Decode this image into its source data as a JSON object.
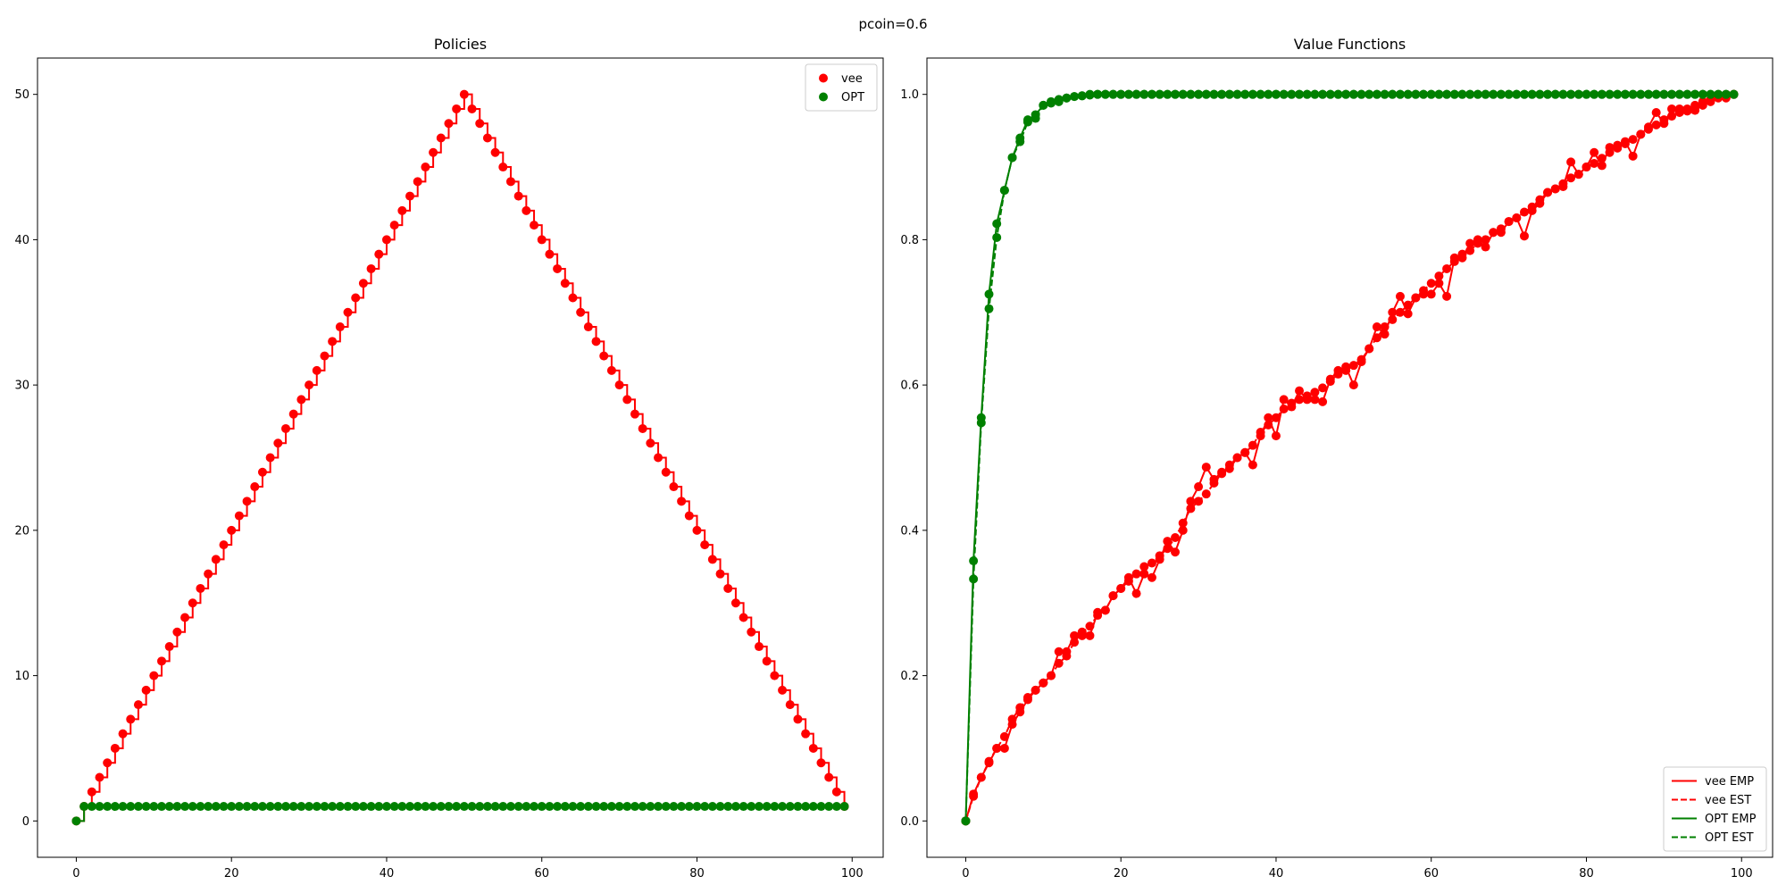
{
  "figure": {
    "suptitle": "pcoin=0.6"
  },
  "chart_data": [
    {
      "type": "scatter",
      "title": "Policies",
      "xlabel": "",
      "ylabel": "",
      "xlim": [
        -5,
        104
      ],
      "ylim": [
        -2.5,
        52.5
      ],
      "xticks": [
        0,
        20,
        40,
        60,
        80,
        100
      ],
      "yticks": [
        0,
        10,
        20,
        30,
        40,
        50
      ],
      "grid": false,
      "legend_position": "upper-right",
      "x": {
        "start": 0,
        "stop": 99,
        "step": 1
      },
      "series": [
        {
          "name": "vee",
          "color": "#ff0000",
          "marker": "circle",
          "line": "steps-post",
          "values": [
            0,
            1,
            2,
            3,
            4,
            5,
            6,
            7,
            8,
            9,
            10,
            11,
            12,
            13,
            14,
            15,
            16,
            17,
            18,
            19,
            20,
            21,
            22,
            23,
            24,
            25,
            26,
            27,
            28,
            29,
            30,
            31,
            32,
            33,
            34,
            35,
            36,
            37,
            38,
            39,
            40,
            41,
            42,
            43,
            44,
            45,
            46,
            47,
            48,
            49,
            50,
            49,
            48,
            47,
            46,
            45,
            44,
            43,
            42,
            41,
            40,
            39,
            38,
            37,
            36,
            35,
            34,
            33,
            32,
            31,
            30,
            29,
            28,
            27,
            26,
            25,
            24,
            23,
            22,
            21,
            20,
            19,
            18,
            17,
            16,
            15,
            14,
            13,
            12,
            11,
            10,
            9,
            8,
            7,
            6,
            5,
            4,
            3,
            2,
            1
          ]
        },
        {
          "name": "OPT",
          "color": "#008000",
          "marker": "circle",
          "line": "steps-post",
          "values": [
            0,
            1,
            1,
            1,
            1,
            1,
            1,
            1,
            1,
            1,
            1,
            1,
            1,
            1,
            1,
            1,
            1,
            1,
            1,
            1,
            1,
            1,
            1,
            1,
            1,
            1,
            1,
            1,
            1,
            1,
            1,
            1,
            1,
            1,
            1,
            1,
            1,
            1,
            1,
            1,
            1,
            1,
            1,
            1,
            1,
            1,
            1,
            1,
            1,
            1,
            1,
            1,
            1,
            1,
            1,
            1,
            1,
            1,
            1,
            1,
            1,
            1,
            1,
            1,
            1,
            1,
            1,
            1,
            1,
            1,
            1,
            1,
            1,
            1,
            1,
            1,
            1,
            1,
            1,
            1,
            1,
            1,
            1,
            1,
            1,
            1,
            1,
            1,
            1,
            1,
            1,
            1,
            1,
            1,
            1,
            1,
            1,
            1,
            1,
            1
          ]
        }
      ]
    },
    {
      "type": "line",
      "title": "Value Functions",
      "xlabel": "",
      "ylabel": "",
      "xlim": [
        -5,
        104
      ],
      "ylim": [
        -0.05,
        1.05
      ],
      "xticks": [
        0,
        20,
        40,
        60,
        80,
        100
      ],
      "yticks": [
        0.0,
        0.2,
        0.4,
        0.6,
        0.8,
        1.0
      ],
      "ytick_labels": [
        "0.0",
        "0.2",
        "0.4",
        "0.6",
        "0.8",
        "1.0"
      ],
      "grid": false,
      "legend_position": "lower-right",
      "x": {
        "start": 0,
        "stop": 99,
        "step": 1
      },
      "series": [
        {
          "name": "vee EMP",
          "color": "#ff0000",
          "linestyle": "solid",
          "marker": "circle",
          "values": [
            0.0,
            0.037,
            0.06,
            0.08,
            0.1,
            0.1,
            0.133,
            0.15,
            0.167,
            0.18,
            0.19,
            0.2,
            0.233,
            0.233,
            0.255,
            0.255,
            0.255,
            0.287,
            0.29,
            0.31,
            0.32,
            0.335,
            0.313,
            0.34,
            0.335,
            0.36,
            0.385,
            0.37,
            0.4,
            0.44,
            0.46,
            0.487,
            0.47,
            0.48,
            0.485,
            0.5,
            0.507,
            0.49,
            0.53,
            0.555,
            0.53,
            0.58,
            0.57,
            0.592,
            0.58,
            0.58,
            0.577,
            0.608,
            0.62,
            0.625,
            0.6,
            0.632,
            0.65,
            0.68,
            0.67,
            0.7,
            0.722,
            0.698,
            0.72,
            0.725,
            0.725,
            0.74,
            0.722,
            0.775,
            0.775,
            0.795,
            0.8,
            0.79,
            0.81,
            0.81,
            0.825,
            0.83,
            0.805,
            0.84,
            0.85,
            0.865,
            0.87,
            0.873,
            0.907,
            0.89,
            0.9,
            0.92,
            0.902,
            0.927,
            0.93,
            0.935,
            0.915,
            0.945,
            0.955,
            0.975,
            0.96,
            0.98,
            0.98,
            0.977,
            0.978,
            0.985,
            0.99,
            0.995,
            0.995,
            1.0
          ]
        },
        {
          "name": "vee EST",
          "color": "#ff0000",
          "linestyle": "dashed",
          "marker": "circle",
          "values": [
            0.0,
            0.034,
            0.06,
            0.082,
            0.1,
            0.116,
            0.14,
            0.156,
            0.17,
            0.18,
            0.19,
            0.2,
            0.217,
            0.227,
            0.246,
            0.26,
            0.268,
            0.283,
            0.29,
            0.31,
            0.32,
            0.33,
            0.34,
            0.35,
            0.355,
            0.365,
            0.375,
            0.39,
            0.41,
            0.43,
            0.44,
            0.45,
            0.465,
            0.478,
            0.49,
            0.5,
            0.507,
            0.517,
            0.535,
            0.545,
            0.555,
            0.567,
            0.575,
            0.58,
            0.585,
            0.59,
            0.596,
            0.605,
            0.615,
            0.62,
            0.627,
            0.635,
            0.65,
            0.665,
            0.68,
            0.69,
            0.7,
            0.71,
            0.72,
            0.73,
            0.74,
            0.75,
            0.76,
            0.77,
            0.78,
            0.785,
            0.795,
            0.8,
            0.81,
            0.815,
            0.825,
            0.83,
            0.838,
            0.845,
            0.855,
            0.865,
            0.87,
            0.877,
            0.885,
            0.89,
            0.9,
            0.905,
            0.912,
            0.92,
            0.926,
            0.932,
            0.938,
            0.945,
            0.952,
            0.958,
            0.965,
            0.97,
            0.975,
            0.98,
            0.985,
            0.99,
            0.993,
            0.996,
            0.998,
            1.0
          ]
        },
        {
          "name": "OPT EMP",
          "color": "#008000",
          "linestyle": "solid",
          "marker": "circle",
          "values": [
            0.0,
            0.358,
            0.555,
            0.725,
            0.822,
            0.868,
            0.913,
            0.94,
            0.965,
            0.972,
            0.985,
            0.988,
            0.99,
            0.995,
            0.997,
            0.998,
            1.0,
            1.0,
            1.0,
            1.0,
            1.0,
            1.0,
            1.0,
            1.0,
            1.0,
            1.0,
            1.0,
            1.0,
            1.0,
            1.0,
            1.0,
            1.0,
            1.0,
            1.0,
            1.0,
            1.0,
            1.0,
            1.0,
            1.0,
            1.0,
            1.0,
            1.0,
            1.0,
            1.0,
            1.0,
            1.0,
            1.0,
            1.0,
            1.0,
            1.0,
            1.0,
            1.0,
            1.0,
            1.0,
            1.0,
            1.0,
            1.0,
            1.0,
            1.0,
            1.0,
            1.0,
            1.0,
            1.0,
            1.0,
            1.0,
            1.0,
            1.0,
            1.0,
            1.0,
            1.0,
            1.0,
            1.0,
            1.0,
            1.0,
            1.0,
            1.0,
            1.0,
            1.0,
            1.0,
            1.0,
            1.0,
            1.0,
            1.0,
            1.0,
            1.0,
            1.0,
            1.0,
            1.0,
            1.0,
            1.0,
            1.0,
            1.0,
            1.0,
            1.0,
            1.0,
            1.0,
            1.0,
            1.0,
            1.0,
            1.0
          ]
        },
        {
          "name": "OPT EST",
          "color": "#008000",
          "linestyle": "dashed",
          "marker": "circle",
          "values": [
            0.0,
            0.333,
            0.548,
            0.705,
            0.803,
            0.868,
            0.913,
            0.935,
            0.962,
            0.967,
            0.985,
            0.99,
            0.993,
            0.995,
            0.997,
            0.998,
            0.999,
            1.0,
            1.0,
            1.0,
            1.0,
            1.0,
            1.0,
            1.0,
            1.0,
            1.0,
            1.0,
            1.0,
            1.0,
            1.0,
            1.0,
            1.0,
            1.0,
            1.0,
            1.0,
            1.0,
            1.0,
            1.0,
            1.0,
            1.0,
            1.0,
            1.0,
            1.0,
            1.0,
            1.0,
            1.0,
            1.0,
            1.0,
            1.0,
            1.0,
            1.0,
            1.0,
            1.0,
            1.0,
            1.0,
            1.0,
            1.0,
            1.0,
            1.0,
            1.0,
            1.0,
            1.0,
            1.0,
            1.0,
            1.0,
            1.0,
            1.0,
            1.0,
            1.0,
            1.0,
            1.0,
            1.0,
            1.0,
            1.0,
            1.0,
            1.0,
            1.0,
            1.0,
            1.0,
            1.0,
            1.0,
            1.0,
            1.0,
            1.0,
            1.0,
            1.0,
            1.0,
            1.0,
            1.0,
            1.0,
            1.0,
            1.0,
            1.0,
            1.0,
            1.0,
            1.0,
            1.0,
            1.0,
            1.0,
            1.0
          ]
        }
      ]
    }
  ]
}
